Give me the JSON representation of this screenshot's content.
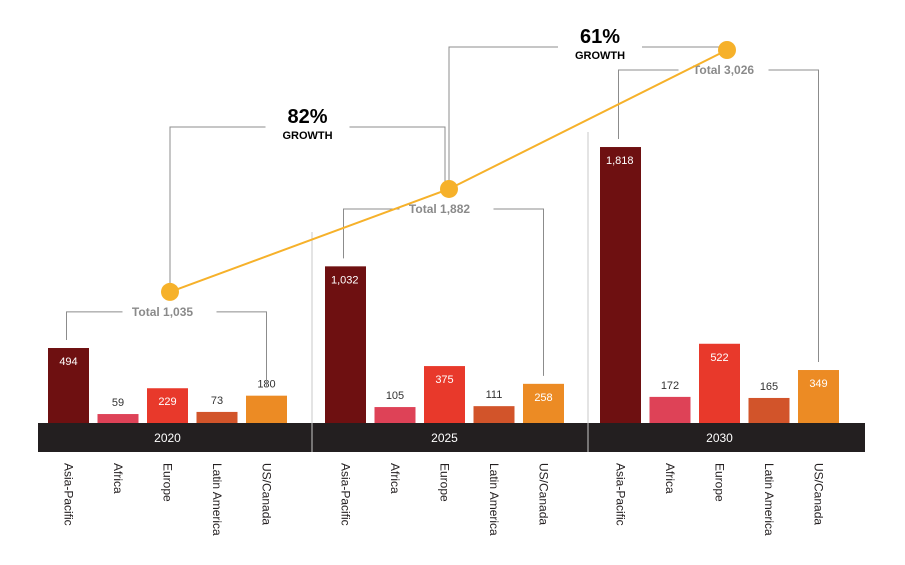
{
  "chart_data": {
    "type": "bar",
    "categories": [
      "Asia-Pacific",
      "Africa",
      "Europe",
      "Latin America",
      "US/Canada"
    ],
    "category_colors": [
      "#6e1011",
      "#de4257",
      "#e8392b",
      "#d2542a",
      "#ec8b24"
    ],
    "groups": [
      {
        "year": "2020",
        "values": [
          494,
          59,
          229,
          73,
          180
        ],
        "value_labels": [
          "494",
          "59",
          "229",
          "73",
          "180"
        ],
        "total": 1035,
        "total_label": "Total 1,035"
      },
      {
        "year": "2025",
        "values": [
          1032,
          105,
          375,
          111,
          258
        ],
        "value_labels": [
          "1,032",
          "105",
          "375",
          "111",
          "258"
        ],
        "total": 1882,
        "total_label": "Total 1,882"
      },
      {
        "year": "2030",
        "values": [
          1818,
          172,
          522,
          165,
          349
        ],
        "value_labels": [
          "1,818",
          "172",
          "522",
          "165",
          "349"
        ],
        "total": 3026,
        "total_label": "Total 3,026"
      }
    ],
    "growth": [
      {
        "pct": "82%",
        "label": "GROWTH",
        "from": "2020",
        "to": "2025"
      },
      {
        "pct": "61%",
        "label": "GROWTH",
        "from": "2025",
        "to": "2030"
      }
    ],
    "total_line_color": "#f6b12a",
    "axis_band_color": "#231f20",
    "bracket_color": "#8c8c8c",
    "ylim": [
      0,
      1818
    ]
  }
}
